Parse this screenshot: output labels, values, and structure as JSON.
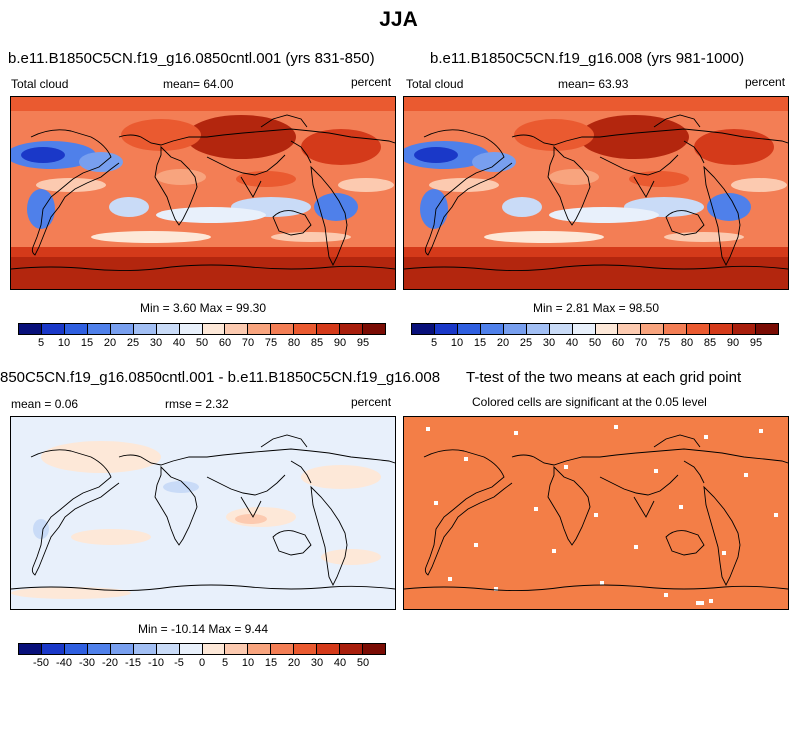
{
  "main_title": "JJA",
  "panels": [
    {
      "title": "b.e11.B1850C5CN.f19_g16.0850cntl.001 (yrs 831-850)",
      "left_label": "Total cloud",
      "center_label": "mean=  64.00",
      "right_label": "percent",
      "minmax": "Min =   3.60 Max =  99.30",
      "colorbar": {
        "labels": [
          "5",
          "10",
          "15",
          "20",
          "25",
          "30",
          "40",
          "50",
          "60",
          "70",
          "75",
          "80",
          "85",
          "90",
          "95"
        ],
        "colors": [
          "#08107a",
          "#1a38c8",
          "#2f5fe0",
          "#4f80ea",
          "#789fef",
          "#a2bff4",
          "#c9dbf7",
          "#e8f0fb",
          "#fde8d8",
          "#fccab0",
          "#f8a47e",
          "#f37e55",
          "#ea5a30",
          "#d43a1a",
          "#a81e0c",
          "#7a0c04"
        ]
      }
    },
    {
      "title": "b.e11.B1850C5CN.f19_g16.008 (yrs 981-1000)",
      "left_label": "Total cloud",
      "center_label": "mean=  63.93",
      "right_label": "percent",
      "minmax": "Min =   2.81 Max =  98.50",
      "colorbar": {
        "labels": [
          "5",
          "10",
          "15",
          "20",
          "25",
          "30",
          "40",
          "50",
          "60",
          "70",
          "75",
          "80",
          "85",
          "90",
          "95"
        ],
        "colors": [
          "#08107a",
          "#1a38c8",
          "#2f5fe0",
          "#4f80ea",
          "#789fef",
          "#a2bff4",
          "#c9dbf7",
          "#e8f0fb",
          "#fde8d8",
          "#fccab0",
          "#f8a47e",
          "#f37e55",
          "#ea5a30",
          "#d43a1a",
          "#a81e0c",
          "#7a0c04"
        ]
      }
    },
    {
      "title": "850C5CN.f19_g16.0850cntl.001 - b.e11.B1850C5CN.f19_g16.008",
      "left_label": "mean =   0.06",
      "center_label": "rmse =   2.32",
      "right_label": "percent",
      "minmax": "Min = -10.14 Max =   9.44",
      "colorbar": {
        "labels": [
          "-50",
          "-40",
          "-30",
          "-20",
          "-15",
          "-10",
          "-5",
          "0",
          "5",
          "10",
          "15",
          "20",
          "30",
          "40",
          "50"
        ],
        "colors": [
          "#08107a",
          "#1a38c8",
          "#2f5fe0",
          "#4f80ea",
          "#789fef",
          "#a2bff4",
          "#c9dbf7",
          "#e8f0fb",
          "#fde8d8",
          "#fccab0",
          "#f8a47e",
          "#f37e55",
          "#ea5a30",
          "#d43a1a",
          "#a81e0c",
          "#7a0c04"
        ]
      }
    },
    {
      "title": "T-test of the two means at each grid point",
      "subtitle": "Colored cells are significant at the 0.05 level"
    }
  ],
  "chart_data": [
    {
      "type": "heatmap",
      "title": "b.e11.B1850C5CN.f19_g16.0850cntl.001 (yrs 831-850)",
      "variable": "Total cloud",
      "units": "percent",
      "season": "JJA",
      "mean": 64.0,
      "min": 3.6,
      "max": 99.3,
      "levels": [
        5,
        10,
        15,
        20,
        25,
        30,
        40,
        50,
        60,
        70,
        75,
        80,
        85,
        90,
        95
      ]
    },
    {
      "type": "heatmap",
      "title": "b.e11.B1850C5CN.f19_g16.008 (yrs 981-1000)",
      "variable": "Total cloud",
      "units": "percent",
      "season": "JJA",
      "mean": 63.93,
      "min": 2.81,
      "max": 98.5,
      "levels": [
        5,
        10,
        15,
        20,
        25,
        30,
        40,
        50,
        60,
        70,
        75,
        80,
        85,
        90,
        95
      ]
    },
    {
      "type": "heatmap",
      "title": "850C5CN.f19_g16.0850cntl.001 - b.e11.B1850C5CN.f19_g16.008",
      "units": "percent",
      "mean": 0.06,
      "rmse": 2.32,
      "min": -10.14,
      "max": 9.44,
      "levels": [
        -50,
        -40,
        -30,
        -20,
        -15,
        -10,
        -5,
        0,
        5,
        10,
        15,
        20,
        30,
        40,
        50
      ]
    },
    {
      "type": "heatmap",
      "title": "T-test of the two means at each grid point",
      "note": "Colored cells are significant at the 0.05 level"
    }
  ]
}
